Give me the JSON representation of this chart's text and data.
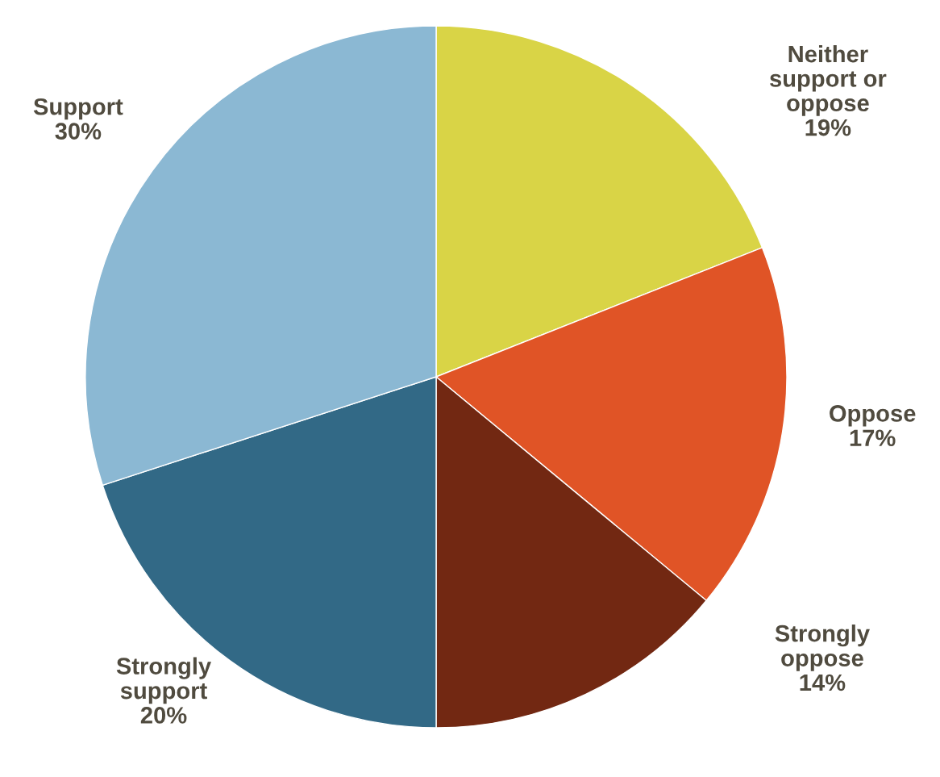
{
  "chart_data": {
    "type": "pie",
    "categories": [
      "Neither\nsupport or\noppose",
      "Oppose",
      "Strongly\noppose",
      "Strongly\nsupport",
      "Support"
    ],
    "values": [
      19,
      17,
      14,
      20,
      30
    ],
    "value_labels": [
      "19%",
      "17%",
      "14%",
      "20%",
      "30%"
    ],
    "colors": [
      "#d9d446",
      "#e05426",
      "#722812",
      "#326986",
      "#8bb8d3"
    ],
    "legend": false
  }
}
